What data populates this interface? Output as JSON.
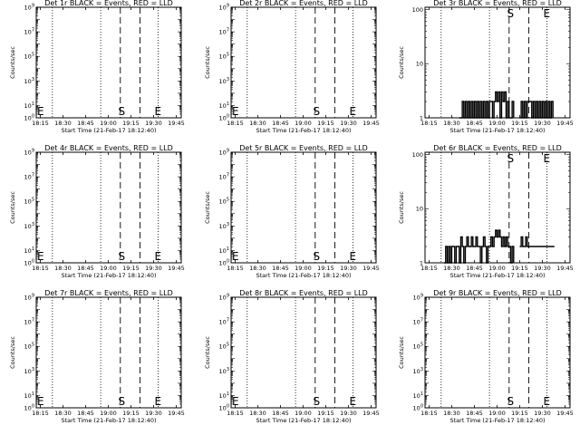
{
  "chart_data": {
    "type": "line",
    "layout": "3x3 grid",
    "x_tick_labels": [
      "18:15",
      "18:30",
      "18:45",
      "19:00",
      "19:15",
      "19:30",
      "19:45"
    ],
    "x_tick_minutes": [
      0,
      15,
      30,
      45,
      60,
      75,
      90
    ],
    "xlabel": "Start Time (21-Feb-17 18:12:40)",
    "ylabel": "Counts/sec",
    "line_colors": {
      "events": "#000000",
      "lld": "#ff0000"
    },
    "panels": [
      {
        "title": "Det 1r BLACK = Events, RED = LLD",
        "yscale": "log",
        "ylim": [
          1,
          1000000000
        ],
        "y_ticks": [
          {
            "v": 1,
            "t": "10",
            "e": "0"
          },
          {
            "v": 10,
            "t": "10",
            "e": "1"
          },
          {
            "v": 1000,
            "t": "10",
            "e": "3"
          },
          {
            "v": 100000,
            "t": "10",
            "e": "5"
          },
          {
            "v": 10000000,
            "t": "10",
            "e": "7"
          },
          {
            "v": 1000000000,
            "t": "10",
            "e": "9"
          }
        ],
        "dotted_lines": [
          8,
          40,
          78
        ],
        "dashed_lines": [
          53,
          66
        ],
        "markers": [
          {
            "t": "E",
            "x": 0.5
          },
          {
            "t": "S",
            "x": 54
          },
          {
            "t": "E",
            "x": 78
          }
        ],
        "events": []
      },
      {
        "title": "Det 2r BLACK = Events, RED = LLD",
        "yscale": "log",
        "ylim": [
          1,
          1000000000
        ],
        "y_ticks": [
          {
            "v": 1,
            "t": "10",
            "e": "0"
          },
          {
            "v": 10,
            "t": "10",
            "e": "1"
          },
          {
            "v": 1000,
            "t": "10",
            "e": "3"
          },
          {
            "v": 100000,
            "t": "10",
            "e": "5"
          },
          {
            "v": 10000000,
            "t": "10",
            "e": "7"
          },
          {
            "v": 1000000000,
            "t": "10",
            "e": "9"
          }
        ],
        "dotted_lines": [
          8,
          40,
          78
        ],
        "dashed_lines": [
          53,
          66
        ],
        "markers": [
          {
            "t": "E",
            "x": 0.5
          },
          {
            "t": "S",
            "x": 54
          },
          {
            "t": "E",
            "x": 78
          }
        ],
        "events": []
      },
      {
        "title": "Det 3r BLACK = Events, RED = LLD",
        "yscale": "log",
        "ylim": [
          1,
          110
        ],
        "y_ticks": [
          {
            "v": 1,
            "t": "1",
            "e": ""
          },
          {
            "v": 10,
            "t": "10",
            "e": ""
          },
          {
            "v": 100,
            "t": "100",
            "e": ""
          }
        ],
        "dotted_lines": [
          8,
          40,
          78
        ],
        "dashed_lines": [
          53,
          66
        ],
        "markers": [
          {
            "t": "S",
            "x": 54
          },
          {
            "t": "E",
            "x": 78
          }
        ],
        "events": [
          {
            "x": 20,
            "y": 1
          },
          {
            "x": 22,
            "y": 2
          },
          {
            "x": 23,
            "y": 1
          },
          {
            "x": 24,
            "y": 2
          },
          {
            "x": 25,
            "y": 1
          },
          {
            "x": 26,
            "y": 2
          },
          {
            "x": 27,
            "y": 1
          },
          {
            "x": 28,
            "y": 2
          },
          {
            "x": 29,
            "y": 1
          },
          {
            "x": 30,
            "y": 2
          },
          {
            "x": 31,
            "y": 1
          },
          {
            "x": 32,
            "y": 2
          },
          {
            "x": 33,
            "y": 1
          },
          {
            "x": 34,
            "y": 2
          },
          {
            "x": 35,
            "y": 1
          },
          {
            "x": 36,
            "y": 2
          },
          {
            "x": 37,
            "y": 1
          },
          {
            "x": 38,
            "y": 2
          },
          {
            "x": 39,
            "y": 1
          },
          {
            "x": 40,
            "y": 2
          },
          {
            "x": 41,
            "y": 2
          },
          {
            "x": 42,
            "y": 1
          },
          {
            "x": 43,
            "y": 2
          },
          {
            "x": 44,
            "y": 3
          },
          {
            "x": 45,
            "y": 2
          },
          {
            "x": 46,
            "y": 3
          },
          {
            "x": 47,
            "y": 1
          },
          {
            "x": 48,
            "y": 3
          },
          {
            "x": 49,
            "y": 2
          },
          {
            "x": 50,
            "y": 3
          },
          {
            "x": 51,
            "y": 1
          },
          {
            "x": 52,
            "y": 2
          },
          {
            "x": 53,
            "y": 1
          },
          {
            "x": 54,
            "y": 1
          },
          {
            "x": 55,
            "y": 2
          },
          {
            "x": 56,
            "y": 1
          },
          {
            "x": 60,
            "y": 1
          },
          {
            "x": 61,
            "y": 2
          },
          {
            "x": 62,
            "y": 1
          },
          {
            "x": 63,
            "y": 2
          },
          {
            "x": 64,
            "y": 1
          },
          {
            "x": 65,
            "y": 2
          },
          {
            "x": 66,
            "y": 2
          },
          {
            "x": 67,
            "y": 2
          },
          {
            "x": 68,
            "y": 1
          },
          {
            "x": 69,
            "y": 2
          },
          {
            "x": 70,
            "y": 1
          },
          {
            "x": 71,
            "y": 2
          },
          {
            "x": 72,
            "y": 1
          },
          {
            "x": 73,
            "y": 2
          },
          {
            "x": 74,
            "y": 1
          },
          {
            "x": 75,
            "y": 2
          },
          {
            "x": 76,
            "y": 1
          },
          {
            "x": 77,
            "y": 2
          },
          {
            "x": 78,
            "y": 1
          },
          {
            "x": 79,
            "y": 2
          },
          {
            "x": 80,
            "y": 1
          },
          {
            "x": 81,
            "y": 2
          },
          {
            "x": 82,
            "y": 1
          }
        ],
        "events_gap_after_x": 56
      },
      {
        "title": "Det 4r BLACK = Events, RED = LLD",
        "yscale": "log",
        "ylim": [
          1,
          1000000000
        ],
        "y_ticks": [
          {
            "v": 1,
            "t": "10",
            "e": "0"
          },
          {
            "v": 10,
            "t": "10",
            "e": "1"
          },
          {
            "v": 1000,
            "t": "10",
            "e": "3"
          },
          {
            "v": 100000,
            "t": "10",
            "e": "5"
          },
          {
            "v": 10000000,
            "t": "10",
            "e": "7"
          },
          {
            "v": 1000000000,
            "t": "10",
            "e": "9"
          }
        ],
        "dotted_lines": [
          8,
          40,
          78
        ],
        "dashed_lines": [
          53,
          66
        ],
        "markers": [
          {
            "t": "E",
            "x": 0.5
          },
          {
            "t": "S",
            "x": 54
          },
          {
            "t": "E",
            "x": 78
          }
        ],
        "events": []
      },
      {
        "title": "Det 5r BLACK = Events, RED = LLD",
        "yscale": "log",
        "ylim": [
          1,
          1000000000
        ],
        "y_ticks": [
          {
            "v": 1,
            "t": "10",
            "e": "0"
          },
          {
            "v": 10,
            "t": "10",
            "e": "1"
          },
          {
            "v": 1000,
            "t": "10",
            "e": "3"
          },
          {
            "v": 100000,
            "t": "10",
            "e": "5"
          },
          {
            "v": 10000000,
            "t": "10",
            "e": "7"
          },
          {
            "v": 1000000000,
            "t": "10",
            "e": "9"
          }
        ],
        "dotted_lines": [
          8,
          40,
          78
        ],
        "dashed_lines": [
          53,
          66
        ],
        "markers": [
          {
            "t": "E",
            "x": 0.5
          },
          {
            "t": "S",
            "x": 54
          },
          {
            "t": "E",
            "x": 78
          }
        ],
        "events": []
      },
      {
        "title": "Det 6r BLACK = Events, RED = LLD",
        "yscale": "log",
        "ylim": [
          1,
          110
        ],
        "y_ticks": [
          {
            "v": 1,
            "t": "1",
            "e": ""
          },
          {
            "v": 10,
            "t": "10",
            "e": ""
          },
          {
            "v": 100,
            "t": "100",
            "e": ""
          }
        ],
        "dotted_lines": [
          8,
          40,
          78
        ],
        "dashed_lines": [
          53,
          66
        ],
        "markers": [
          {
            "t": "S",
            "x": 54
          },
          {
            "t": "E",
            "x": 78
          }
        ],
        "events": [
          {
            "x": 10,
            "y": 1
          },
          {
            "x": 11,
            "y": 2
          },
          {
            "x": 12,
            "y": 1
          },
          {
            "x": 13,
            "y": 2
          },
          {
            "x": 14,
            "y": 1
          },
          {
            "x": 15,
            "y": 2
          },
          {
            "x": 16,
            "y": 2
          },
          {
            "x": 17,
            "y": 1
          },
          {
            "x": 18,
            "y": 2
          },
          {
            "x": 19,
            "y": 2
          },
          {
            "x": 20,
            "y": 1
          },
          {
            "x": 21,
            "y": 3
          },
          {
            "x": 22,
            "y": 2
          },
          {
            "x": 23,
            "y": 1
          },
          {
            "x": 24,
            "y": 2
          },
          {
            "x": 25,
            "y": 3
          },
          {
            "x": 26,
            "y": 2
          },
          {
            "x": 27,
            "y": 2
          },
          {
            "x": 28,
            "y": 3
          },
          {
            "x": 29,
            "y": 2
          },
          {
            "x": 30,
            "y": 2
          },
          {
            "x": 31,
            "y": 3
          },
          {
            "x": 32,
            "y": 2
          },
          {
            "x": 33,
            "y": 2
          },
          {
            "x": 34,
            "y": 1
          },
          {
            "x": 35,
            "y": 2
          },
          {
            "x": 36,
            "y": 3
          },
          {
            "x": 37,
            "y": 2
          },
          {
            "x": 38,
            "y": 1
          },
          {
            "x": 39,
            "y": 2
          },
          {
            "x": 40,
            "y": 2
          },
          {
            "x": 41,
            "y": 3
          },
          {
            "x": 42,
            "y": 2
          },
          {
            "x": 43,
            "y": 3
          },
          {
            "x": 44,
            "y": 4
          },
          {
            "x": 45,
            "y": 3
          },
          {
            "x": 46,
            "y": 4
          },
          {
            "x": 47,
            "y": 3
          },
          {
            "x": 48,
            "y": 2
          },
          {
            "x": 49,
            "y": 3
          },
          {
            "x": 50,
            "y": 2
          },
          {
            "x": 51,
            "y": 3
          },
          {
            "x": 52,
            "y": 2
          },
          {
            "x": 53,
            "y": 2
          },
          {
            "x": 54,
            "y": 1
          },
          {
            "x": 55,
            "y": 2
          },
          {
            "x": 56,
            "y": 1
          },
          {
            "x": 60,
            "y": 2
          },
          {
            "x": 61,
            "y": 3
          },
          {
            "x": 62,
            "y": 2
          },
          {
            "x": 63,
            "y": 2
          },
          {
            "x": 64,
            "y": 3
          },
          {
            "x": 65,
            "y": 2
          },
          {
            "x": 66,
            "y": 2
          },
          {
            "x": 67,
            "y": 2
          },
          {
            "x": 68,
            "y": 2
          },
          {
            "x": 69,
            "y": 2
          },
          {
            "x": 70,
            "y": 2
          },
          {
            "x": 71,
            "y": 2
          },
          {
            "x": 72,
            "y": 2
          },
          {
            "x": 73,
            "y": 2
          },
          {
            "x": 74,
            "y": 2
          },
          {
            "x": 75,
            "y": 2
          },
          {
            "x": 76,
            "y": 2
          },
          {
            "x": 77,
            "y": 2
          },
          {
            "x": 78,
            "y": 2
          },
          {
            "x": 79,
            "y": 2
          },
          {
            "x": 80,
            "y": 2
          },
          {
            "x": 81,
            "y": 2
          },
          {
            "x": 82,
            "y": 2
          },
          {
            "x": 83,
            "y": 2
          }
        ],
        "events_gap_after_x": 56
      },
      {
        "title": "Det 7r BLACK = Events, RED = LLD",
        "yscale": "log",
        "ylim": [
          1,
          1000000000
        ],
        "y_ticks": [
          {
            "v": 1,
            "t": "10",
            "e": "0"
          },
          {
            "v": 10,
            "t": "10",
            "e": "1"
          },
          {
            "v": 1000,
            "t": "10",
            "e": "3"
          },
          {
            "v": 100000,
            "t": "10",
            "e": "5"
          },
          {
            "v": 10000000,
            "t": "10",
            "e": "7"
          },
          {
            "v": 1000000000,
            "t": "10",
            "e": "9"
          }
        ],
        "dotted_lines": [
          8,
          40,
          78
        ],
        "dashed_lines": [
          53,
          66
        ],
        "markers": [
          {
            "t": "E",
            "x": 0.5
          },
          {
            "t": "S",
            "x": 54
          },
          {
            "t": "E",
            "x": 78
          }
        ],
        "events": []
      },
      {
        "title": "Det 8r BLACK = Events, RED = LLD",
        "yscale": "log",
        "ylim": [
          1,
          1000000000
        ],
        "y_ticks": [
          {
            "v": 1,
            "t": "10",
            "e": "0"
          },
          {
            "v": 10,
            "t": "10",
            "e": "1"
          },
          {
            "v": 1000,
            "t": "10",
            "e": "3"
          },
          {
            "v": 100000,
            "t": "10",
            "e": "5"
          },
          {
            "v": 10000000,
            "t": "10",
            "e": "7"
          },
          {
            "v": 1000000000,
            "t": "10",
            "e": "9"
          }
        ],
        "dotted_lines": [
          8,
          40,
          78
        ],
        "dashed_lines": [
          53,
          66
        ],
        "markers": [
          {
            "t": "E",
            "x": 0.5
          },
          {
            "t": "S",
            "x": 54
          },
          {
            "t": "E",
            "x": 78
          }
        ],
        "events": []
      },
      {
        "title": "Det 9r BLACK = Events, RED = LLD",
        "yscale": "log",
        "ylim": [
          1,
          1000000000
        ],
        "y_ticks": [
          {
            "v": 1,
            "t": "10",
            "e": "0"
          },
          {
            "v": 10,
            "t": "10",
            "e": "1"
          },
          {
            "v": 1000,
            "t": "10",
            "e": "3"
          },
          {
            "v": 100000,
            "t": "10",
            "e": "5"
          },
          {
            "v": 10000000,
            "t": "10",
            "e": "7"
          },
          {
            "v": 1000000000,
            "t": "10",
            "e": "9"
          }
        ],
        "dotted_lines": [
          8,
          40,
          78
        ],
        "dashed_lines": [
          53,
          66
        ],
        "markers": [
          {
            "t": "S",
            "x": 54
          },
          {
            "t": "E",
            "x": 78
          }
        ],
        "events": []
      }
    ]
  }
}
